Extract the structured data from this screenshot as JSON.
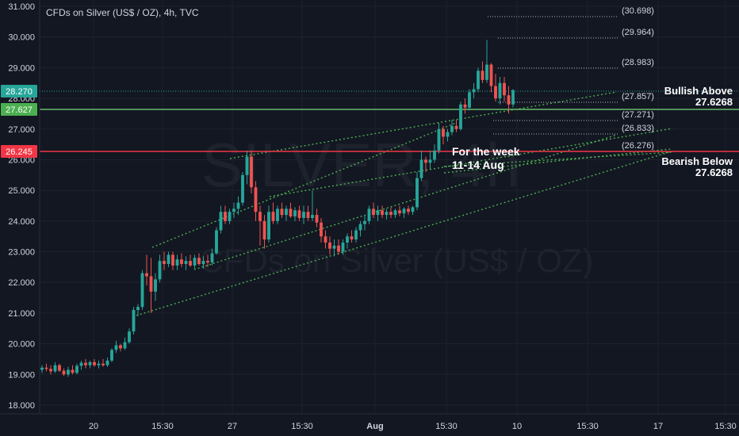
{
  "header": {
    "title": "CFDs on Silver (US$ / OZ), 4h, TVC"
  },
  "watermark": {
    "symbol": "SILVER, 4h",
    "description": "CFDs on Silver (US$ / OZ)"
  },
  "annotations": {
    "week_line1": "For the week",
    "week_line2": "11-14 Aug",
    "bullish_label": "Bullish Above",
    "bullish_value": "27.6268",
    "bearish_label": "Bearish Below",
    "bearish_value": "27.6268"
  },
  "price_tags": [
    {
      "value": "28.270",
      "color": "#26a69a"
    },
    {
      "value": "27.627",
      "color": "#4caf50"
    },
    {
      "value": "26.245",
      "color": "#f23645"
    }
  ],
  "chart_data": {
    "type": "candlestick",
    "title": "CFDs on Silver (US$ / OZ), 4h, TVC",
    "ylim": [
      17.8,
      31.0
    ],
    "y_ticks": [
      "18.000",
      "19.000",
      "20.000",
      "21.000",
      "22.000",
      "23.000",
      "24.000",
      "25.000",
      "26.000",
      "27.000",
      "28.000",
      "29.000",
      "30.000",
      "31.000"
    ],
    "x_ticks": [
      "20",
      "15:30",
      "27",
      "15:30",
      "Aug",
      "15:30",
      "10",
      "15:30",
      "17",
      "15:30"
    ],
    "horizontal_levels": [
      {
        "name": "Green level",
        "value": 27.627,
        "color": "#4caf50"
      },
      {
        "name": "Red level",
        "value": 26.245,
        "color": "#f23645"
      },
      {
        "name": "Last price",
        "value": 28.27,
        "color": "#26a69a",
        "style": "dotted"
      }
    ],
    "fib_levels": [
      "(30.698)",
      "(29.964)",
      "(28.983)",
      "(27.857)",
      "(27.271)",
      "(26.833)",
      "(26.276)"
    ],
    "colors": {
      "up": "#26a69a",
      "down": "#ef5350",
      "trend": "#4caf50",
      "background": "#131722"
    },
    "candles": [
      {
        "o": 19.15,
        "h": 19.3,
        "l": 19.05,
        "c": 19.22
      },
      {
        "o": 19.22,
        "h": 19.35,
        "l": 19.1,
        "c": 19.18
      },
      {
        "o": 19.18,
        "h": 19.3,
        "l": 19.0,
        "c": 19.1
      },
      {
        "o": 19.1,
        "h": 19.4,
        "l": 19.05,
        "c": 19.3
      },
      {
        "o": 19.3,
        "h": 19.35,
        "l": 19.08,
        "c": 19.12
      },
      {
        "o": 19.12,
        "h": 19.2,
        "l": 18.95,
        "c": 19.0
      },
      {
        "o": 19.0,
        "h": 19.25,
        "l": 18.92,
        "c": 19.15
      },
      {
        "o": 19.15,
        "h": 19.3,
        "l": 19.0,
        "c": 19.05
      },
      {
        "o": 19.05,
        "h": 19.35,
        "l": 19.0,
        "c": 19.28
      },
      {
        "o": 19.28,
        "h": 19.45,
        "l": 19.15,
        "c": 19.38
      },
      {
        "o": 19.38,
        "h": 19.5,
        "l": 19.2,
        "c": 19.3
      },
      {
        "o": 19.3,
        "h": 19.45,
        "l": 19.2,
        "c": 19.4
      },
      {
        "o": 19.4,
        "h": 19.5,
        "l": 19.25,
        "c": 19.3
      },
      {
        "o": 19.3,
        "h": 19.45,
        "l": 19.2,
        "c": 19.35
      },
      {
        "o": 19.35,
        "h": 19.5,
        "l": 19.25,
        "c": 19.3
      },
      {
        "o": 19.3,
        "h": 19.55,
        "l": 19.25,
        "c": 19.45
      },
      {
        "o": 19.45,
        "h": 19.85,
        "l": 19.4,
        "c": 19.8
      },
      {
        "o": 19.8,
        "h": 20.1,
        "l": 19.7,
        "c": 19.95
      },
      {
        "o": 19.95,
        "h": 20.0,
        "l": 19.75,
        "c": 19.85
      },
      {
        "o": 19.85,
        "h": 20.2,
        "l": 19.8,
        "c": 20.05
      },
      {
        "o": 20.05,
        "h": 20.5,
        "l": 20.0,
        "c": 20.4
      },
      {
        "o": 20.4,
        "h": 21.2,
        "l": 20.3,
        "c": 21.1
      },
      {
        "o": 21.1,
        "h": 21.3,
        "l": 20.9,
        "c": 21.2
      },
      {
        "o": 21.2,
        "h": 22.4,
        "l": 21.1,
        "c": 22.3
      },
      {
        "o": 22.3,
        "h": 22.9,
        "l": 21.9,
        "c": 22.2
      },
      {
        "o": 22.2,
        "h": 22.8,
        "l": 21.0,
        "c": 21.7
      },
      {
        "o": 21.7,
        "h": 22.3,
        "l": 21.4,
        "c": 22.1
      },
      {
        "o": 22.1,
        "h": 22.9,
        "l": 22.0,
        "c": 22.7
      },
      {
        "o": 22.7,
        "h": 23.0,
        "l": 22.4,
        "c": 22.6
      },
      {
        "o": 22.6,
        "h": 23.0,
        "l": 22.5,
        "c": 22.9
      },
      {
        "o": 22.9,
        "h": 23.0,
        "l": 22.4,
        "c": 22.55
      },
      {
        "o": 22.55,
        "h": 22.9,
        "l": 22.4,
        "c": 22.75
      },
      {
        "o": 22.75,
        "h": 22.95,
        "l": 22.5,
        "c": 22.6
      },
      {
        "o": 22.6,
        "h": 22.85,
        "l": 22.4,
        "c": 22.7
      },
      {
        "o": 22.7,
        "h": 22.9,
        "l": 22.5,
        "c": 22.55
      },
      {
        "o": 22.55,
        "h": 22.9,
        "l": 22.45,
        "c": 22.8
      },
      {
        "o": 22.8,
        "h": 22.95,
        "l": 22.55,
        "c": 22.6
      },
      {
        "o": 22.6,
        "h": 22.85,
        "l": 22.45,
        "c": 22.7
      },
      {
        "o": 22.7,
        "h": 22.9,
        "l": 22.5,
        "c": 22.65
      },
      {
        "o": 22.65,
        "h": 23.1,
        "l": 22.55,
        "c": 22.95
      },
      {
        "o": 22.95,
        "h": 23.8,
        "l": 22.9,
        "c": 23.7
      },
      {
        "o": 23.7,
        "h": 24.5,
        "l": 23.6,
        "c": 24.3
      },
      {
        "o": 24.3,
        "h": 24.5,
        "l": 23.9,
        "c": 24.0
      },
      {
        "o": 24.0,
        "h": 24.4,
        "l": 23.9,
        "c": 24.3
      },
      {
        "o": 24.3,
        "h": 24.6,
        "l": 24.1,
        "c": 24.4
      },
      {
        "o": 24.4,
        "h": 24.8,
        "l": 24.2,
        "c": 24.6
      },
      {
        "o": 24.6,
        "h": 25.6,
        "l": 24.5,
        "c": 25.5
      },
      {
        "o": 25.5,
        "h": 26.3,
        "l": 25.2,
        "c": 26.1
      },
      {
        "o": 26.1,
        "h": 26.3,
        "l": 24.9,
        "c": 25.1
      },
      {
        "o": 25.1,
        "h": 25.3,
        "l": 24.0,
        "c": 24.3
      },
      {
        "o": 24.3,
        "h": 24.5,
        "l": 23.2,
        "c": 24.0
      },
      {
        "o": 24.0,
        "h": 24.2,
        "l": 23.1,
        "c": 23.4
      },
      {
        "o": 23.4,
        "h": 24.5,
        "l": 23.3,
        "c": 24.3
      },
      {
        "o": 24.3,
        "h": 24.6,
        "l": 23.9,
        "c": 24.0
      },
      {
        "o": 24.0,
        "h": 24.5,
        "l": 23.9,
        "c": 24.4
      },
      {
        "o": 24.4,
        "h": 24.6,
        "l": 24.1,
        "c": 24.2
      },
      {
        "o": 24.2,
        "h": 24.5,
        "l": 24.0,
        "c": 24.4
      },
      {
        "o": 24.4,
        "h": 24.6,
        "l": 24.1,
        "c": 24.15
      },
      {
        "o": 24.15,
        "h": 24.45,
        "l": 24.0,
        "c": 24.35
      },
      {
        "o": 24.35,
        "h": 24.5,
        "l": 24.0,
        "c": 24.1
      },
      {
        "o": 24.1,
        "h": 24.5,
        "l": 23.9,
        "c": 24.3
      },
      {
        "o": 24.3,
        "h": 24.5,
        "l": 24.0,
        "c": 24.1
      },
      {
        "o": 24.1,
        "h": 25.0,
        "l": 24.0,
        "c": 24.2
      },
      {
        "o": 24.2,
        "h": 24.4,
        "l": 23.8,
        "c": 23.95
      },
      {
        "o": 23.95,
        "h": 24.1,
        "l": 23.3,
        "c": 23.5
      },
      {
        "o": 23.5,
        "h": 23.7,
        "l": 23.1,
        "c": 23.3
      },
      {
        "o": 23.3,
        "h": 23.5,
        "l": 22.9,
        "c": 23.1
      },
      {
        "o": 23.1,
        "h": 23.4,
        "l": 22.85,
        "c": 23.2
      },
      {
        "o": 23.2,
        "h": 23.4,
        "l": 22.9,
        "c": 23.0
      },
      {
        "o": 23.0,
        "h": 23.4,
        "l": 22.9,
        "c": 23.3
      },
      {
        "o": 23.3,
        "h": 23.6,
        "l": 23.1,
        "c": 23.5
      },
      {
        "o": 23.5,
        "h": 23.7,
        "l": 23.3,
        "c": 23.4
      },
      {
        "o": 23.4,
        "h": 23.8,
        "l": 23.3,
        "c": 23.7
      },
      {
        "o": 23.7,
        "h": 24.0,
        "l": 23.5,
        "c": 23.9
      },
      {
        "o": 23.9,
        "h": 24.2,
        "l": 23.7,
        "c": 24.0
      },
      {
        "o": 24.0,
        "h": 24.5,
        "l": 23.9,
        "c": 24.4
      },
      {
        "o": 24.4,
        "h": 24.6,
        "l": 24.1,
        "c": 24.2
      },
      {
        "o": 24.2,
        "h": 24.5,
        "l": 24.0,
        "c": 24.35
      },
      {
        "o": 24.35,
        "h": 24.5,
        "l": 24.1,
        "c": 24.2
      },
      {
        "o": 24.2,
        "h": 24.4,
        "l": 24.05,
        "c": 24.3
      },
      {
        "o": 24.3,
        "h": 24.45,
        "l": 24.1,
        "c": 24.2
      },
      {
        "o": 24.2,
        "h": 24.4,
        "l": 24.1,
        "c": 24.35
      },
      {
        "o": 24.35,
        "h": 24.5,
        "l": 24.15,
        "c": 24.25
      },
      {
        "o": 24.25,
        "h": 24.45,
        "l": 24.1,
        "c": 24.4
      },
      {
        "o": 24.4,
        "h": 24.5,
        "l": 24.2,
        "c": 24.3
      },
      {
        "o": 24.3,
        "h": 24.5,
        "l": 24.2,
        "c": 24.45
      },
      {
        "o": 24.45,
        "h": 25.6,
        "l": 24.35,
        "c": 25.4
      },
      {
        "o": 25.4,
        "h": 26.3,
        "l": 25.3,
        "c": 26.0
      },
      {
        "o": 26.0,
        "h": 26.1,
        "l": 25.6,
        "c": 25.9
      },
      {
        "o": 25.9,
        "h": 26.3,
        "l": 25.7,
        "c": 26.0
      },
      {
        "o": 26.0,
        "h": 26.5,
        "l": 25.9,
        "c": 26.3
      },
      {
        "o": 26.3,
        "h": 27.2,
        "l": 26.2,
        "c": 27.0
      },
      {
        "o": 27.0,
        "h": 27.1,
        "l": 26.5,
        "c": 26.75
      },
      {
        "o": 26.75,
        "h": 27.0,
        "l": 26.6,
        "c": 26.9
      },
      {
        "o": 26.9,
        "h": 27.3,
        "l": 26.8,
        "c": 27.1
      },
      {
        "o": 27.1,
        "h": 27.3,
        "l": 26.9,
        "c": 27.0
      },
      {
        "o": 27.0,
        "h": 27.9,
        "l": 26.95,
        "c": 27.8
      },
      {
        "o": 27.8,
        "h": 28.0,
        "l": 27.5,
        "c": 27.7
      },
      {
        "o": 27.7,
        "h": 28.3,
        "l": 27.6,
        "c": 28.2
      },
      {
        "o": 28.2,
        "h": 28.5,
        "l": 28.0,
        "c": 28.3
      },
      {
        "o": 28.3,
        "h": 29.0,
        "l": 28.2,
        "c": 28.9
      },
      {
        "o": 28.9,
        "h": 29.2,
        "l": 28.5,
        "c": 28.6
      },
      {
        "o": 28.6,
        "h": 29.9,
        "l": 28.5,
        "c": 29.1
      },
      {
        "o": 29.1,
        "h": 29.15,
        "l": 28.2,
        "c": 28.4
      },
      {
        "o": 28.4,
        "h": 28.8,
        "l": 27.9,
        "c": 28.0
      },
      {
        "o": 28.0,
        "h": 28.7,
        "l": 27.8,
        "c": 28.5
      },
      {
        "o": 28.5,
        "h": 28.7,
        "l": 27.9,
        "c": 28.1
      },
      {
        "o": 28.1,
        "h": 28.4,
        "l": 27.5,
        "c": 27.8
      },
      {
        "o": 27.8,
        "h": 28.3,
        "l": 27.7,
        "c": 28.27
      }
    ]
  }
}
